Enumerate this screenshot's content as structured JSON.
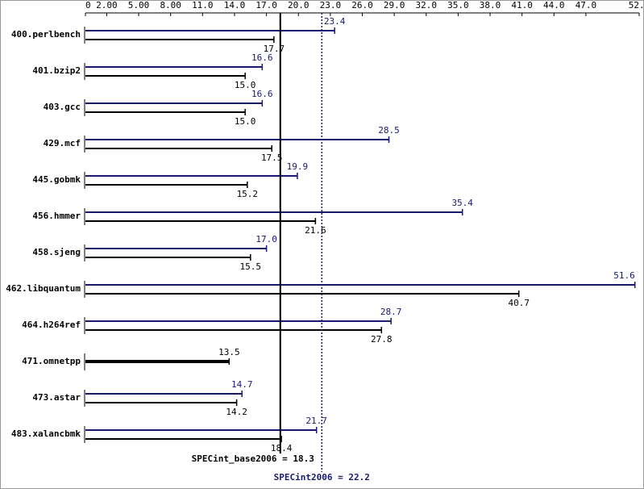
{
  "chart_data": {
    "type": "bar",
    "orientation": "horizontal",
    "categories": [
      "400.perlbench",
      "401.bzip2",
      "403.gcc",
      "429.mcf",
      "445.gobmk",
      "456.hmmer",
      "458.sjeng",
      "462.libquantum",
      "464.h264ref",
      "471.omnetpp",
      "473.astar",
      "483.xalancbmk"
    ],
    "series": [
      {
        "color": "#191970",
        "values": [
          23.4,
          16.6,
          16.6,
          28.5,
          19.9,
          35.4,
          17.0,
          51.6,
          28.7,
          null,
          14.7,
          21.7
        ],
        "value_labels": [
          "23.4",
          "16.6",
          "16.6",
          "28.5",
          "19.9",
          "35.4",
          "17.0",
          "51.6",
          "28.7",
          null,
          "14.7",
          "21.7"
        ]
      },
      {
        "color": "#000000",
        "values": [
          17.7,
          15.0,
          15.0,
          17.5,
          15.2,
          21.6,
          15.5,
          40.7,
          27.8,
          13.5,
          14.2,
          18.4
        ],
        "value_labels": [
          "17.7",
          "15.0",
          "15.0",
          "17.5",
          "15.2",
          "21.6",
          "15.5",
          "40.7",
          "27.8",
          "13.5",
          "14.2",
          "18.4"
        ]
      }
    ],
    "xlim": [
      0,
      52
    ],
    "xticks": [
      0,
      {
        "value": 2,
        "label": "2.00"
      },
      {
        "value": 5,
        "label": "5.00"
      },
      {
        "value": 8,
        "label": "8.00"
      },
      {
        "value": 11,
        "label": "11.0"
      },
      {
        "value": 14,
        "label": "14.0"
      },
      {
        "value": 17,
        "label": "17.0"
      },
      {
        "value": 20,
        "label": "20.0"
      },
      {
        "value": 23,
        "label": "23.0"
      },
      {
        "value": 26,
        "label": "26.0"
      },
      {
        "value": 29,
        "label": "29.0"
      },
      {
        "value": 32,
        "label": "32.0"
      },
      {
        "value": 35,
        "label": "35.0"
      },
      {
        "value": 38,
        "label": "38.0"
      },
      {
        "value": 41,
        "label": "41.0"
      },
      {
        "value": 44,
        "label": "44.0"
      },
      {
        "value": 47,
        "label": "47.0"
      },
      {
        "value": 52,
        "label": "52.0"
      }
    ],
    "reference_lines": [
      {
        "label": "SPECint_base2006 = 18.3",
        "value": 18.3,
        "color": "#000000"
      },
      {
        "label": "SPECint2006 = 22.2",
        "value": 22.2,
        "color": "#191970"
      }
    ]
  }
}
